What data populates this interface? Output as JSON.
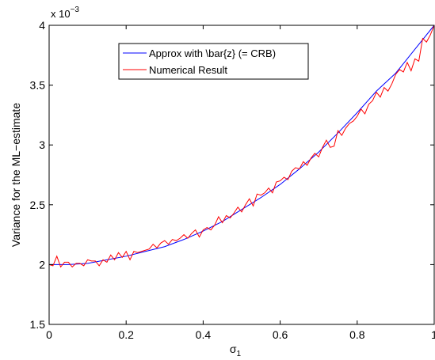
{
  "chart_data": {
    "type": "line",
    "title": "",
    "xlabel": "σ",
    "xlabel_subscript": "1",
    "ylabel": "Variance for the ML−estimate",
    "y_multiplier": {
      "base": "x 10",
      "exponent": "−3"
    },
    "xlim": [
      0,
      1
    ],
    "ylim": [
      1.5,
      4
    ],
    "xticks": [
      0,
      0.2,
      0.4,
      0.6,
      0.8,
      1
    ],
    "xtick_labels": [
      "0",
      "0.2",
      "0.4",
      "0.6",
      "0.8",
      "1"
    ],
    "yticks": [
      1.5,
      2,
      2.5,
      3,
      3.5,
      4
    ],
    "ytick_labels": [
      "1.5",
      "2",
      "2.5",
      "3",
      "3.5",
      "4"
    ],
    "grid": false,
    "legend_position": "top-center",
    "series": [
      {
        "name": "Approx with \\bar{z} (= CRB)",
        "color": "#0000ff",
        "style": "smooth",
        "x": [
          0,
          0.05,
          0.1,
          0.15,
          0.2,
          0.25,
          0.3,
          0.35,
          0.4,
          0.45,
          0.5,
          0.55,
          0.6,
          0.65,
          0.7,
          0.75,
          0.8,
          0.85,
          0.9,
          0.95,
          1
        ],
        "y": [
          2.0,
          2.0,
          2.01,
          2.04,
          2.07,
          2.11,
          2.15,
          2.21,
          2.28,
          2.36,
          2.46,
          2.56,
          2.67,
          2.8,
          2.94,
          3.1,
          3.27,
          3.45,
          3.6,
          3.8,
          4.0
        ]
      },
      {
        "name": "Numerical Result",
        "color": "#ff0000",
        "style": "jagged",
        "x": [
          0,
          0.01,
          0.02,
          0.03,
          0.04,
          0.05,
          0.06,
          0.07,
          0.08,
          0.09,
          0.1,
          0.11,
          0.12,
          0.13,
          0.14,
          0.15,
          0.16,
          0.17,
          0.18,
          0.19,
          0.2,
          0.21,
          0.22,
          0.23,
          0.24,
          0.25,
          0.26,
          0.27,
          0.28,
          0.29,
          0.3,
          0.31,
          0.32,
          0.33,
          0.34,
          0.35,
          0.36,
          0.37,
          0.38,
          0.39,
          0.4,
          0.41,
          0.42,
          0.43,
          0.44,
          0.45,
          0.46,
          0.47,
          0.48,
          0.49,
          0.5,
          0.51,
          0.52,
          0.53,
          0.54,
          0.55,
          0.56,
          0.57,
          0.58,
          0.59,
          0.6,
          0.61,
          0.62,
          0.63,
          0.64,
          0.65,
          0.66,
          0.67,
          0.68,
          0.69,
          0.7,
          0.71,
          0.72,
          0.73,
          0.74,
          0.75,
          0.76,
          0.77,
          0.78,
          0.79,
          0.8,
          0.81,
          0.82,
          0.83,
          0.84,
          0.85,
          0.86,
          0.87,
          0.88,
          0.89,
          0.9,
          0.91,
          0.92,
          0.93,
          0.94,
          0.95,
          0.96,
          0.97,
          0.98,
          0.99,
          1
        ],
        "y": [
          2.0,
          1.99,
          2.07,
          1.98,
          2.02,
          2.02,
          1.98,
          2.01,
          2.01,
          1.99,
          2.04,
          2.03,
          2.03,
          1.99,
          2.04,
          2.02,
          2.08,
          2.04,
          2.1,
          2.06,
          2.11,
          2.04,
          2.11,
          2.1,
          2.11,
          2.12,
          2.13,
          2.17,
          2.14,
          2.18,
          2.2,
          2.17,
          2.21,
          2.2,
          2.22,
          2.25,
          2.22,
          2.26,
          2.29,
          2.23,
          2.29,
          2.31,
          2.29,
          2.33,
          2.4,
          2.35,
          2.41,
          2.39,
          2.43,
          2.48,
          2.44,
          2.5,
          2.55,
          2.49,
          2.59,
          2.58,
          2.6,
          2.64,
          2.6,
          2.69,
          2.7,
          2.73,
          2.71,
          2.78,
          2.81,
          2.8,
          2.86,
          2.83,
          2.89,
          2.93,
          2.9,
          2.98,
          3.04,
          2.98,
          2.99,
          3.12,
          3.08,
          3.14,
          3.18,
          3.2,
          3.24,
          3.3,
          3.26,
          3.34,
          3.37,
          3.44,
          3.4,
          3.48,
          3.45,
          3.51,
          3.59,
          3.63,
          3.61,
          3.69,
          3.62,
          3.72,
          3.7,
          3.89,
          3.86,
          3.92,
          4.0
        ]
      }
    ]
  }
}
